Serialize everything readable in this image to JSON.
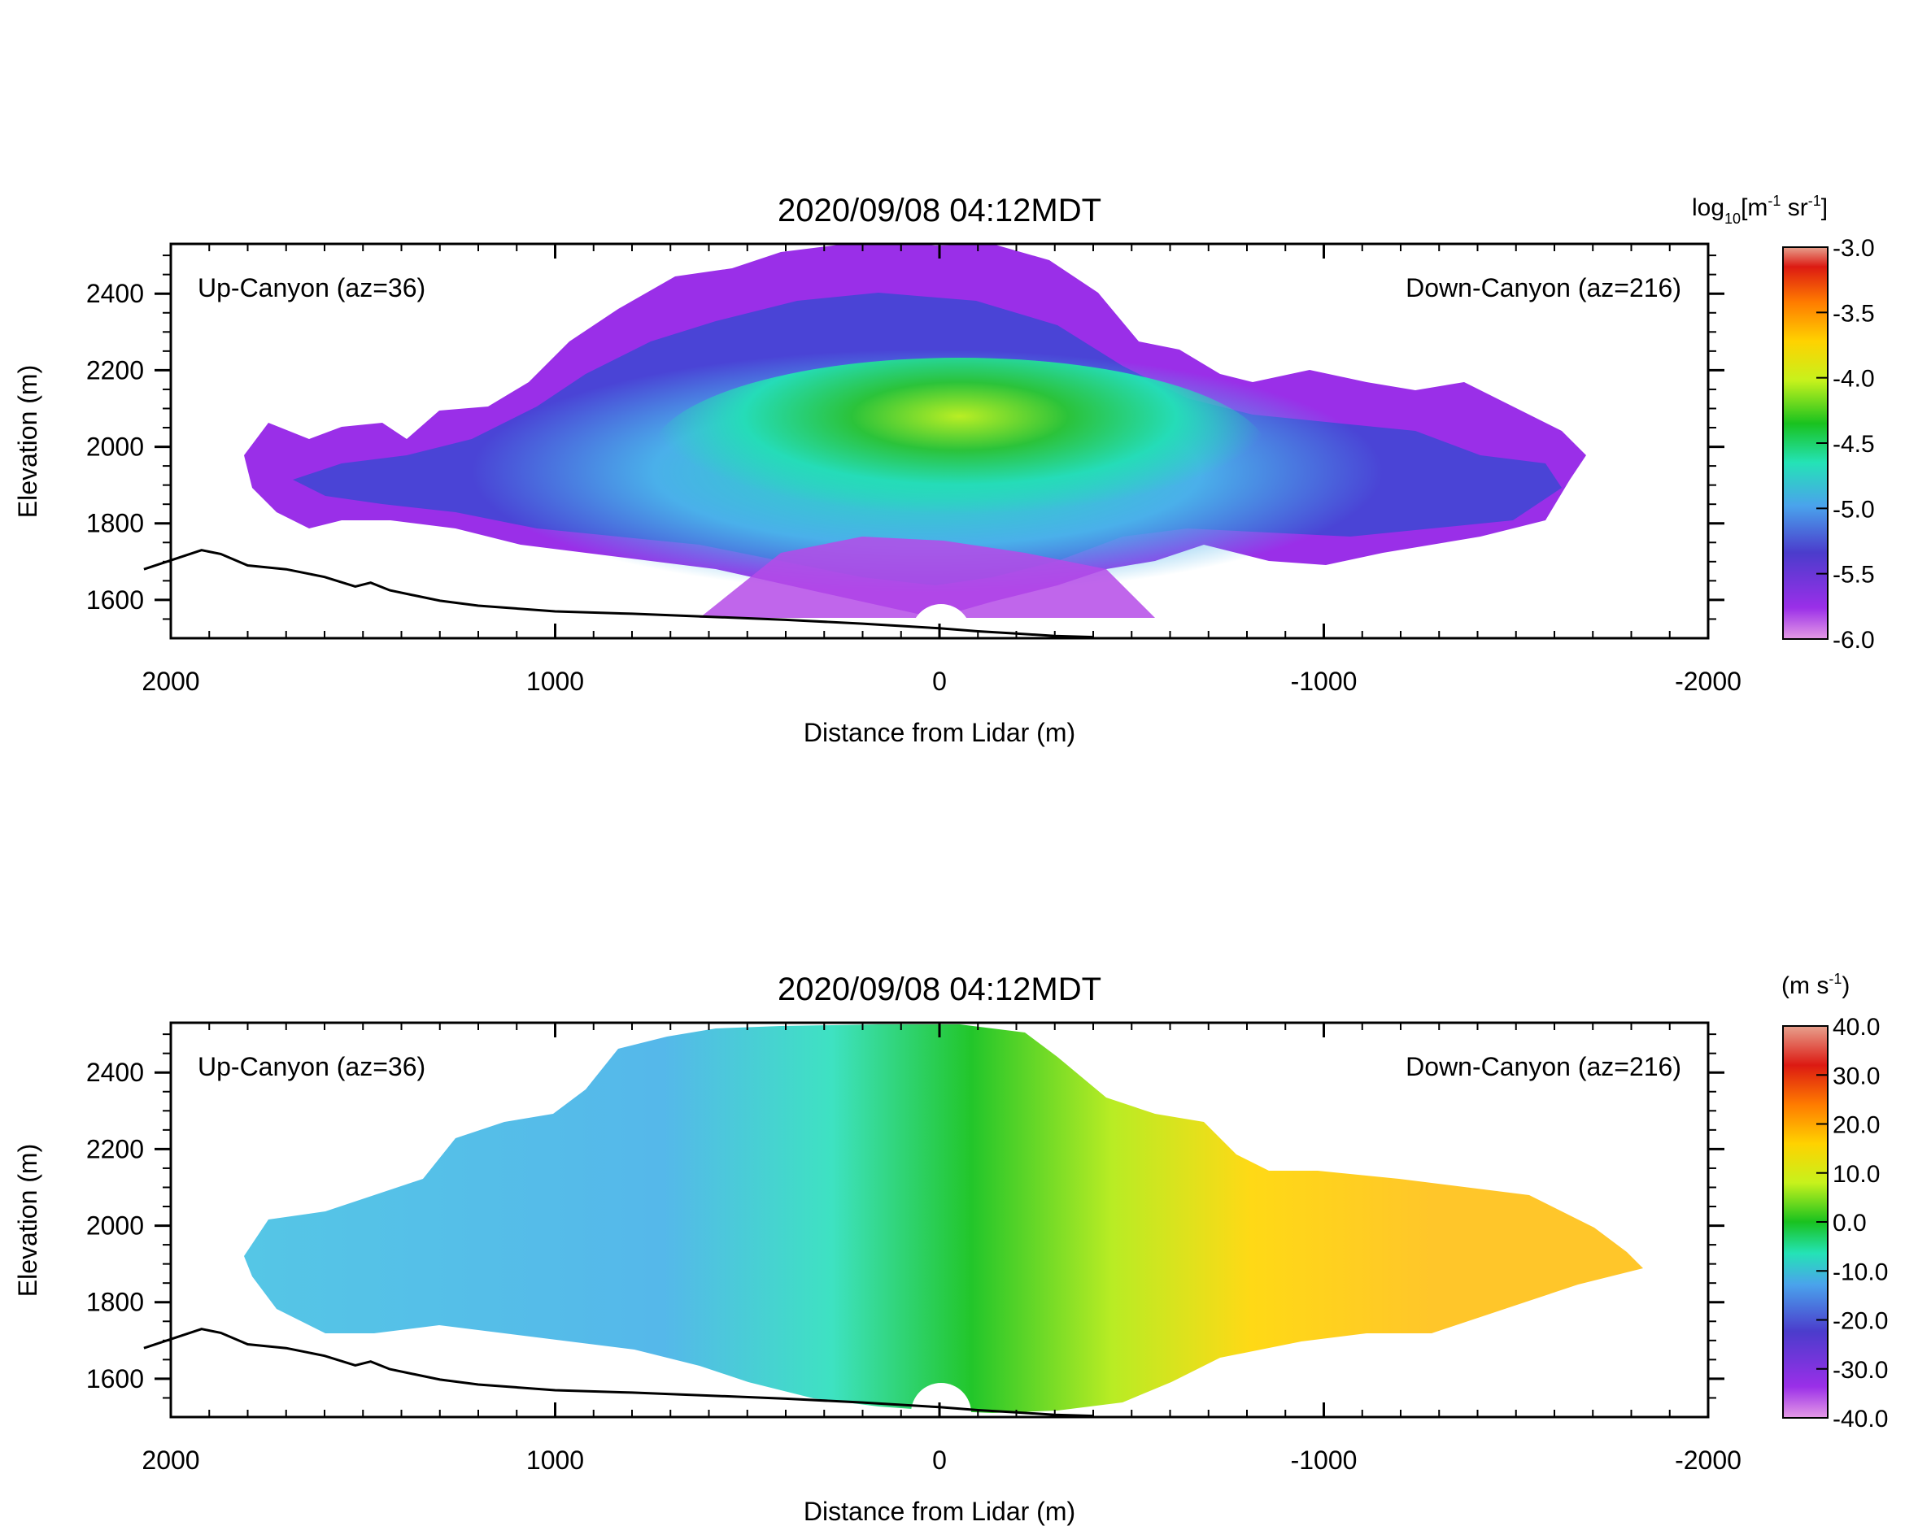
{
  "chart_data": [
    {
      "type": "heatmap",
      "title": "2020/09/08 04:12MDT",
      "xlabel": "Distance from Lidar (m)",
      "ylabel": "Elevation (m)",
      "xlim": [
        2000,
        -2000
      ],
      "ylim": [
        1500,
        2530
      ],
      "x_ticks": [
        2000,
        1000,
        0,
        -1000,
        -2000
      ],
      "x_tick_labels": [
        "2000",
        "1000",
        "0",
        "-1000",
        "-2000"
      ],
      "y_ticks": [
        1600,
        1800,
        2000,
        2200,
        2400
      ],
      "y_tick_labels": [
        "1600",
        "1800",
        "2000",
        "2200",
        "2400"
      ],
      "annotations": {
        "left": "Up-Canyon (az=36)",
        "right": "Down-Canyon (az=216)"
      },
      "colorbar": {
        "unit_label": "log10[m-1 sr-1]",
        "range": [
          -6.0,
          -3.0
        ],
        "tick_labels": [
          "-3.0",
          "-3.5",
          "-4.0",
          "-4.5",
          "-5.0",
          "-5.5",
          "-6.0"
        ],
        "tick_values": [
          -3.0,
          -3.5,
          -4.0,
          -4.5,
          -5.0,
          -5.5,
          -6.0
        ]
      },
      "field_description": "attenuated backscatter, log10 scale, highest (about -4.3) near 2000 m elevation above the lidar",
      "terrain": [
        [
          2070,
          1680
        ],
        [
          1920,
          1730
        ],
        [
          1870,
          1720
        ],
        [
          1800,
          1690
        ],
        [
          1700,
          1680
        ],
        [
          1600,
          1660
        ],
        [
          1520,
          1635
        ],
        [
          1480,
          1645
        ],
        [
          1430,
          1625
        ],
        [
          1300,
          1598
        ],
        [
          1200,
          1585
        ],
        [
          1000,
          1570
        ],
        [
          800,
          1564
        ],
        [
          600,
          1556
        ],
        [
          400,
          1548
        ],
        [
          200,
          1538
        ],
        [
          0,
          1526
        ],
        [
          -100,
          1518
        ],
        [
          -200,
          1512
        ],
        [
          -300,
          1506
        ],
        [
          -400,
          1503
        ]
      ]
    },
    {
      "type": "heatmap",
      "title": "2020/09/08 04:12MDT",
      "xlabel": "Distance from Lidar (m)",
      "ylabel": "Elevation (m)",
      "xlim": [
        2000,
        -2000
      ],
      "ylim": [
        1500,
        2530
      ],
      "x_ticks": [
        2000,
        1000,
        0,
        -1000,
        -2000
      ],
      "x_tick_labels": [
        "2000",
        "1000",
        "0",
        "-1000",
        "-2000"
      ],
      "y_ticks": [
        1600,
        1800,
        2000,
        2200,
        2400
      ],
      "y_tick_labels": [
        "1600",
        "1800",
        "2000",
        "2200",
        "2400"
      ],
      "annotations": {
        "left": "Up-Canyon (az=36)",
        "right": "Down-Canyon (az=216)"
      },
      "colorbar": {
        "unit_label": "(m s-1)",
        "range": [
          -40.0,
          40.0
        ],
        "tick_labels": [
          "40.0",
          "30.0",
          "20.0",
          "10.0",
          "0.0",
          "-10.0",
          "-20.0",
          "-30.0",
          "-40.0"
        ],
        "tick_values": [
          40,
          30,
          20,
          10,
          0,
          -10,
          -20,
          -30,
          -40
        ]
      },
      "field_description": "radial velocity, about -15 m/s on the up-canyon side, about 0 at the lidar, about +18 m/s on the down-canyon side",
      "terrain": [
        [
          2070,
          1680
        ],
        [
          1920,
          1730
        ],
        [
          1870,
          1720
        ],
        [
          1800,
          1690
        ],
        [
          1700,
          1680
        ],
        [
          1600,
          1660
        ],
        [
          1520,
          1635
        ],
        [
          1480,
          1645
        ],
        [
          1430,
          1625
        ],
        [
          1300,
          1598
        ],
        [
          1200,
          1585
        ],
        [
          1000,
          1570
        ],
        [
          800,
          1564
        ],
        [
          600,
          1556
        ],
        [
          400,
          1548
        ],
        [
          200,
          1538
        ],
        [
          0,
          1526
        ],
        [
          -100,
          1518
        ],
        [
          -200,
          1512
        ],
        [
          -300,
          1506
        ],
        [
          -400,
          1503
        ]
      ]
    }
  ]
}
